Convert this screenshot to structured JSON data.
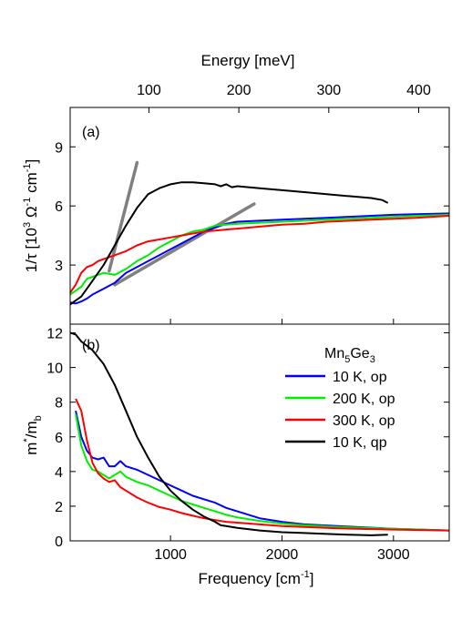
{
  "chart_data": [
    {
      "panel": "(a)",
      "type": "line",
      "top_axis": {
        "label": "Energy [meV]",
        "ticks": [
          100,
          200,
          300,
          400
        ]
      },
      "ylabel": "1/τ [10^3 Ω^-1 cm^-1]",
      "ylim": [
        0,
        11
      ],
      "yticks": [
        3,
        6,
        9
      ],
      "xlim": [
        100,
        3500
      ],
      "series": [
        {
          "name": "10 K, op",
          "color": "#0000ff",
          "x": [
            100,
            150,
            200,
            250,
            300,
            400,
            500,
            600,
            700,
            800,
            900,
            1000,
            1100,
            1200,
            1300,
            1400,
            1500,
            1600,
            1800,
            2000,
            2200,
            2400,
            2600,
            2800,
            3000,
            3200,
            3500
          ],
          "y": [
            1.1,
            1.05,
            1.15,
            1.3,
            1.5,
            1.8,
            2.1,
            2.6,
            2.9,
            3.2,
            3.5,
            3.8,
            4.1,
            4.4,
            4.7,
            4.9,
            5.1,
            5.2,
            5.25,
            5.3,
            5.35,
            5.4,
            5.45,
            5.5,
            5.55,
            5.58,
            5.62
          ]
        },
        {
          "name": "200 K, op",
          "color": "#00ee00",
          "x": [
            100,
            150,
            200,
            250,
            300,
            400,
            500,
            600,
            700,
            800,
            900,
            1000,
            1100,
            1200,
            1300,
            1400,
            1500,
            1600,
            1800,
            2000,
            2200,
            2400,
            2600,
            2800,
            3000,
            3200,
            3500
          ],
          "y": [
            1.5,
            1.7,
            1.9,
            2.3,
            2.4,
            2.6,
            2.5,
            2.8,
            3.2,
            3.5,
            3.9,
            4.2,
            4.5,
            4.7,
            4.8,
            5.0,
            5.05,
            5.1,
            5.15,
            5.2,
            5.25,
            5.3,
            5.35,
            5.4,
            5.45,
            5.5,
            5.55
          ]
        },
        {
          "name": "300 K, op",
          "color": "#ff0000",
          "x": [
            100,
            150,
            200,
            250,
            300,
            350,
            400,
            500,
            600,
            700,
            800,
            900,
            1000,
            1100,
            1200,
            1300,
            1400,
            1500,
            1600,
            1800,
            2000,
            2200,
            2400,
            2600,
            2800,
            3000,
            3200,
            3500
          ],
          "y": [
            1.6,
            2.0,
            2.6,
            2.9,
            3.0,
            3.2,
            3.3,
            3.5,
            3.7,
            4.0,
            4.2,
            4.3,
            4.4,
            4.5,
            4.6,
            4.7,
            4.75,
            4.8,
            4.85,
            4.95,
            5.05,
            5.1,
            5.2,
            5.25,
            5.3,
            5.35,
            5.4,
            5.5
          ]
        },
        {
          "name": "10 K, qp",
          "color": "#000000",
          "x": [
            100,
            150,
            200,
            300,
            400,
            500,
            600,
            700,
            800,
            900,
            1000,
            1100,
            1200,
            1300,
            1400,
            1450,
            1500,
            1550,
            1600,
            1800,
            2000,
            2200,
            2400,
            2600,
            2800,
            2900,
            2950
          ],
          "y": [
            1.0,
            1.2,
            1.4,
            2.2,
            3.0,
            4.0,
            5.0,
            5.9,
            6.6,
            6.9,
            7.1,
            7.2,
            7.2,
            7.15,
            7.1,
            7.0,
            7.1,
            6.95,
            7.0,
            6.9,
            6.8,
            6.7,
            6.6,
            6.5,
            6.4,
            6.3,
            6.15
          ]
        }
      ],
      "guide_lines": [
        {
          "color": "#808080",
          "x": [
            450,
            700
          ],
          "y": [
            2.7,
            8.2
          ]
        },
        {
          "color": "#808080",
          "x": [
            500,
            1750
          ],
          "y": [
            2.0,
            6.1
          ]
        }
      ]
    },
    {
      "panel": "(b)",
      "type": "line",
      "xlabel": "Frequency [cm^-1]",
      "xlim": [
        100,
        3500
      ],
      "xticks": [
        1000,
        2000,
        3000
      ],
      "ylabel": "m*/m_b",
      "ylim": [
        0,
        12.5
      ],
      "yticks": [
        0,
        2,
        4,
        6,
        8,
        10,
        12
      ],
      "legend": {
        "title": "Mn5Ge3",
        "placement": "top-right"
      },
      "series": [
        {
          "name": "10 K, op",
          "color": "#0000ff",
          "x": [
            150,
            200,
            250,
            300,
            350,
            400,
            450,
            500,
            550,
            600,
            700,
            800,
            900,
            1000,
            1100,
            1200,
            1300,
            1400,
            1500,
            1600,
            1800,
            2000,
            2200,
            2500,
            3000,
            3500
          ],
          "y": [
            7.5,
            6.0,
            5.2,
            4.8,
            4.7,
            4.8,
            4.3,
            4.3,
            4.6,
            4.3,
            4.1,
            3.8,
            3.5,
            3.2,
            2.9,
            2.6,
            2.4,
            2.2,
            1.9,
            1.7,
            1.3,
            1.1,
            0.95,
            0.85,
            0.7,
            0.6
          ]
        },
        {
          "name": "200 K, op",
          "color": "#00ee00",
          "x": [
            150,
            200,
            250,
            300,
            350,
            400,
            450,
            500,
            550,
            600,
            700,
            800,
            900,
            1000,
            1100,
            1200,
            1300,
            1400,
            1500,
            1600,
            1800,
            2000,
            2200,
            2500,
            3000,
            3500
          ],
          "y": [
            7.3,
            5.5,
            4.6,
            4.1,
            4.0,
            3.8,
            3.6,
            3.8,
            4.0,
            3.7,
            3.4,
            3.2,
            2.9,
            2.6,
            2.3,
            2.1,
            1.9,
            1.7,
            1.5,
            1.35,
            1.15,
            1.0,
            0.9,
            0.8,
            0.7,
            0.6
          ]
        },
        {
          "name": "300 K, op",
          "color": "#ff0000",
          "x": [
            150,
            200,
            250,
            300,
            350,
            400,
            450,
            500,
            550,
            600,
            700,
            800,
            900,
            1000,
            1100,
            1200,
            1300,
            1400,
            1500,
            1600,
            1800,
            2000,
            2200,
            2500,
            3000,
            3500
          ],
          "y": [
            8.2,
            7.5,
            5.8,
            4.5,
            3.9,
            3.6,
            3.4,
            3.5,
            3.1,
            2.9,
            2.5,
            2.2,
            1.95,
            1.8,
            1.6,
            1.45,
            1.3,
            1.2,
            1.1,
            1.05,
            0.95,
            0.85,
            0.8,
            0.72,
            0.65,
            0.6
          ]
        },
        {
          "name": "10 K, qp",
          "color": "#000000",
          "x": [
            100,
            150,
            200,
            300,
            400,
            500,
            600,
            700,
            800,
            900,
            1000,
            1100,
            1200,
            1300,
            1400,
            1450,
            1500,
            1600,
            1800,
            2000,
            2200,
            2400,
            2600,
            2800,
            2950
          ],
          "y": [
            12.0,
            11.9,
            11.5,
            11.0,
            10.2,
            9.0,
            7.5,
            6.0,
            4.8,
            3.7,
            2.9,
            2.3,
            1.8,
            1.4,
            1.1,
            0.9,
            0.85,
            0.75,
            0.6,
            0.5,
            0.45,
            0.4,
            0.35,
            0.32,
            0.35
          ]
        }
      ]
    }
  ],
  "labels": {
    "top_axis_title": "Energy [meV]",
    "panel_a": "(a)",
    "panel_b": "(b)",
    "ylabel_a_prefix": "1/τ [10",
    "ylabel_a_exp1": "3",
    "ylabel_a_mid": " Ω",
    "ylabel_a_exp2": "-1",
    "ylabel_a_mid2": " cm",
    "ylabel_a_exp3": "-1",
    "ylabel_a_suffix": "]",
    "ylabel_b_m": "m",
    "ylabel_b_star": "*",
    "ylabel_b_slash": "/m",
    "ylabel_b_sub": "b",
    "xlabel_prefix": "Frequency [cm",
    "xlabel_exp": "-1",
    "xlabel_suffix": "]",
    "legend_title_main": "Mn",
    "legend_title_sub1": "5",
    "legend_title_mid": "Ge",
    "legend_title_sub2": "3"
  }
}
